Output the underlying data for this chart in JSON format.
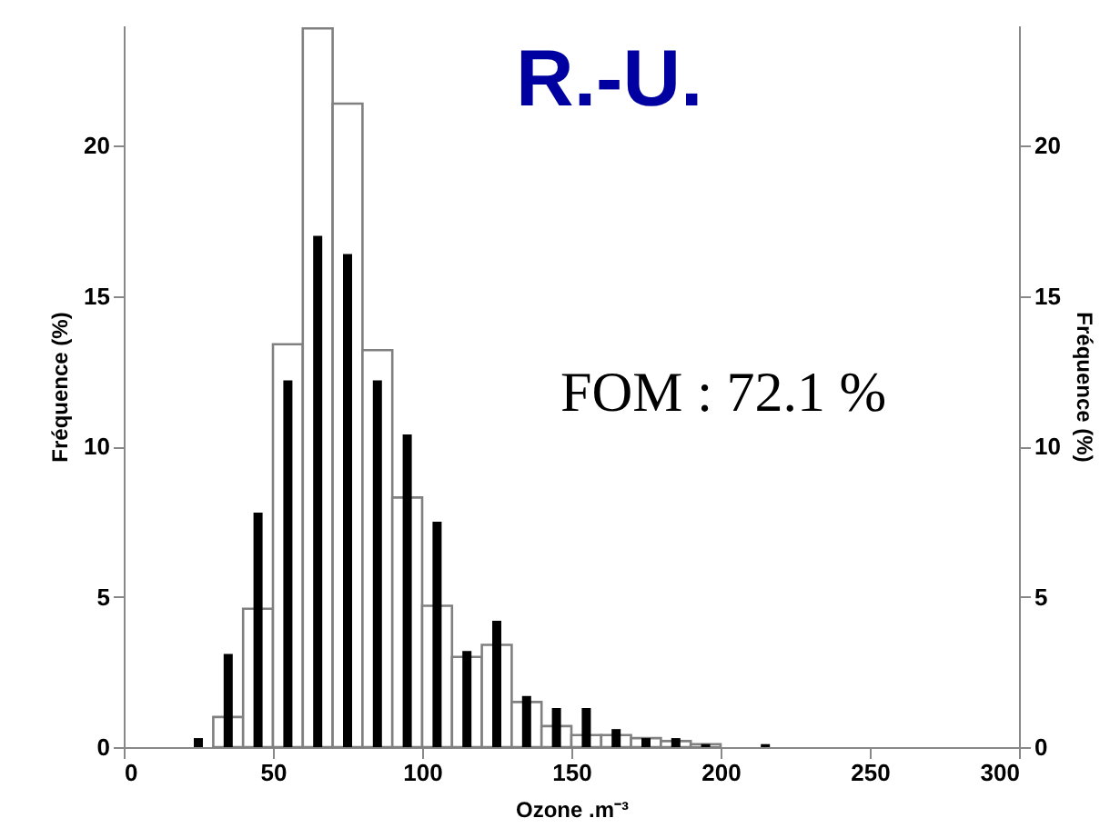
{
  "chart_data": {
    "type": "bar",
    "title": "R.-U.",
    "xlabel": "Ozone .m⁻³",
    "ylabel": "Fréquence (%)",
    "y2label": "Fréquence (%)",
    "annotations": [
      "FOM : 72.1 %"
    ],
    "series": [
      {
        "color": "#ffffff",
        "x": [
          35,
          45,
          55,
          65,
          75,
          85,
          95,
          105,
          115,
          125,
          135,
          145,
          155,
          165,
          175,
          185,
          195
        ],
        "values": [
          1.0,
          4.6,
          13.4,
          23.9,
          21.4,
          13.2,
          8.3,
          4.7,
          3.0,
          3.4,
          1.5,
          0.7,
          0.4,
          0.4,
          0.3,
          0.2,
          0.1
        ]
      },
      {
        "color": "#000000",
        "x": [
          25,
          35,
          45,
          55,
          65,
          75,
          85,
          95,
          105,
          115,
          125,
          135,
          145,
          155,
          165,
          175,
          185,
          195,
          205,
          215
        ],
        "values": [
          0.3,
          3.1,
          7.8,
          12.2,
          17.0,
          16.4,
          12.2,
          10.4,
          7.5,
          3.2,
          4.2,
          1.7,
          1.3,
          1.3,
          0.6,
          0.3,
          0.3,
          0.1,
          null,
          0.1
        ]
      }
    ],
    "xlim": [
      0,
      300
    ],
    "xticks": [
      0,
      50,
      100,
      150,
      200,
      250,
      300
    ],
    "ylim": [
      0,
      24
    ],
    "yticks": [
      0,
      5,
      10,
      15,
      20
    ],
    "y2lim": [
      0,
      24
    ],
    "y2ticks": [
      0,
      5,
      10,
      15,
      20
    ]
  }
}
